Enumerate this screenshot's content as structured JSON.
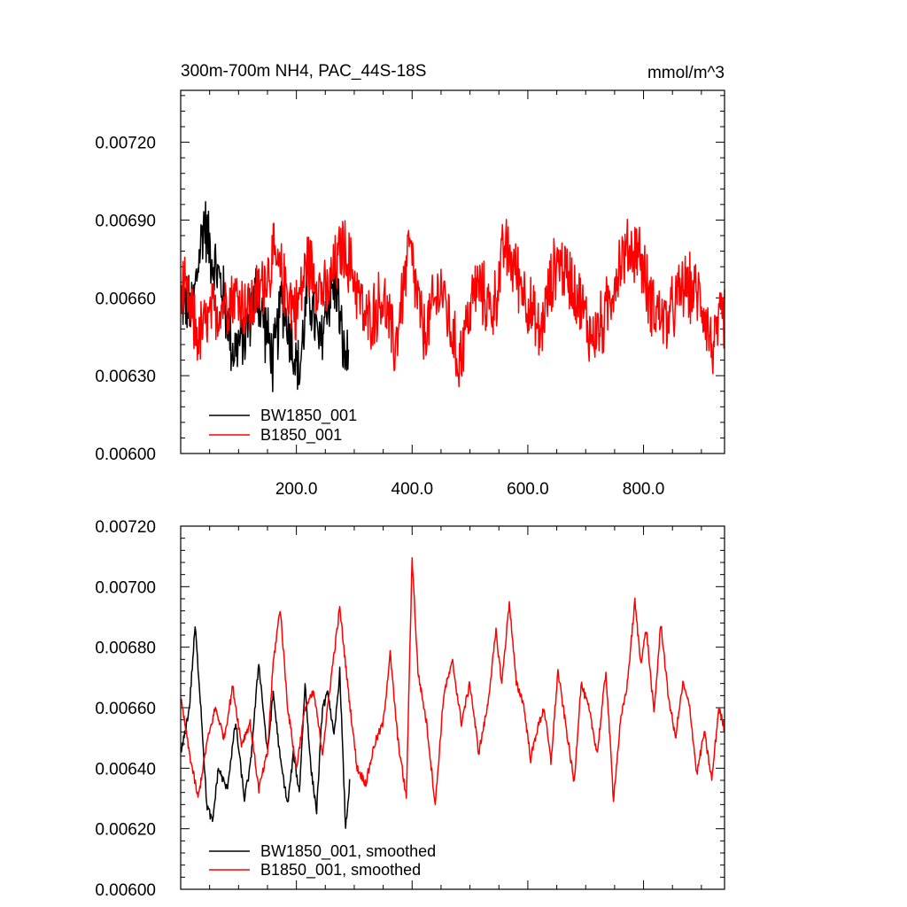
{
  "chart_data": [
    {
      "type": "line",
      "title": "300m-700m NH4, PAC_44S-18S",
      "units": "mmol/m^3",
      "xlim": [
        0,
        940
      ],
      "ylim": [
        0.006,
        0.0074
      ],
      "xticks": [
        200,
        400,
        600,
        800
      ],
      "xtick_labels": [
        "200.0",
        "400.0",
        "600.0",
        "800.0"
      ],
      "yticks": [
        0.006,
        0.0063,
        0.0066,
        0.0069,
        0.0072
      ],
      "ytick_labels": [
        "0.00600",
        "0.00630",
        "0.00660",
        "0.00690",
        "0.00720"
      ],
      "legend_position": "bottom-left",
      "series": [
        {
          "name": "BW1850_001",
          "color": "#000000",
          "x_start": 1,
          "noisy": true,
          "anchors": [
            [
              1,
              0.0066
            ],
            [
              20,
              0.00655
            ],
            [
              40,
              0.0069
            ],
            [
              55,
              0.00675
            ],
            [
              70,
              0.00665
            ],
            [
              90,
              0.0064
            ],
            [
              110,
              0.00645
            ],
            [
              130,
              0.00662
            ],
            [
              145,
              0.0065
            ],
            [
              160,
              0.00635
            ],
            [
              175,
              0.0066
            ],
            [
              190,
              0.00645
            ],
            [
              205,
              0.0063
            ],
            [
              220,
              0.00665
            ],
            [
              240,
              0.0064
            ],
            [
              255,
              0.0066
            ],
            [
              270,
              0.00665
            ],
            [
              280,
              0.0064
            ],
            [
              290,
              0.00635
            ]
          ]
        },
        {
          "name": "B1850_001",
          "color": "#ff0000",
          "x_start": 1,
          "noisy": true,
          "anchors": [
            [
              1,
              0.00665
            ],
            [
              30,
              0.00645
            ],
            [
              60,
              0.00655
            ],
            [
              90,
              0.00662
            ],
            [
              120,
              0.00655
            ],
            [
              160,
              0.00675
            ],
            [
              180,
              0.00665
            ],
            [
              200,
              0.00655
            ],
            [
              220,
              0.00675
            ],
            [
              250,
              0.0066
            ],
            [
              280,
              0.0068
            ],
            [
              300,
              0.00668
            ],
            [
              320,
              0.0065
            ],
            [
              350,
              0.0066
            ],
            [
              370,
              0.0064
            ],
            [
              395,
              0.0068
            ],
            [
              420,
              0.00645
            ],
            [
              450,
              0.00665
            ],
            [
              480,
              0.00635
            ],
            [
              510,
              0.00665
            ],
            [
              540,
              0.00655
            ],
            [
              560,
              0.0068
            ],
            [
              590,
              0.00665
            ],
            [
              620,
              0.00645
            ],
            [
              650,
              0.00675
            ],
            [
              680,
              0.00665
            ],
            [
              710,
              0.00645
            ],
            [
              730,
              0.0065
            ],
            [
              760,
              0.00675
            ],
            [
              790,
              0.0068
            ],
            [
              810,
              0.0066
            ],
            [
              840,
              0.0065
            ],
            [
              870,
              0.00665
            ],
            [
              900,
              0.0066
            ],
            [
              920,
              0.0064
            ],
            [
              940,
              0.00655
            ]
          ]
        }
      ]
    },
    {
      "type": "line",
      "title": "",
      "units": "",
      "xlim": [
        0,
        940
      ],
      "ylim": [
        0.006,
        0.0072
      ],
      "xticks": [
        200,
        400,
        600,
        800
      ],
      "xtick_labels": [
        "",
        "",
        "",
        ""
      ],
      "yticks": [
        0.006,
        0.0062,
        0.0064,
        0.0066,
        0.0068,
        0.007,
        0.0072
      ],
      "ytick_labels": [
        "0.00600",
        "0.00620",
        "0.00640",
        "0.00660",
        "0.00680",
        "0.00700",
        "0.00720"
      ],
      "legend_position": "bottom-left",
      "series": [
        {
          "name": "BW1850_001, smoothed",
          "color": "#000000",
          "x_start": 1,
          "noisy": false,
          "anchors": [
            [
              1,
              0.00645
            ],
            [
              15,
              0.0066
            ],
            [
              25,
              0.00687
            ],
            [
              35,
              0.0066
            ],
            [
              45,
              0.00628
            ],
            [
              55,
              0.00622
            ],
            [
              65,
              0.0064
            ],
            [
              80,
              0.00633
            ],
            [
              95,
              0.00655
            ],
            [
              110,
              0.0063
            ],
            [
              120,
              0.0064
            ],
            [
              135,
              0.00675
            ],
            [
              150,
              0.00645
            ],
            [
              160,
              0.00665
            ],
            [
              172,
              0.00643
            ],
            [
              185,
              0.00628
            ],
            [
              195,
              0.00645
            ],
            [
              205,
              0.00632
            ],
            [
              215,
              0.00668
            ],
            [
              225,
              0.0064
            ],
            [
              235,
              0.00626
            ],
            [
              245,
              0.0066
            ],
            [
              255,
              0.00665
            ],
            [
              265,
              0.0065
            ],
            [
              275,
              0.00672
            ],
            [
              285,
              0.0062
            ],
            [
              292,
              0.00635
            ]
          ]
        },
        {
          "name": "B1850_001, smoothed",
          "color": "#ff0000",
          "x_start": 1,
          "noisy": false,
          "anchors": [
            [
              1,
              0.00662
            ],
            [
              15,
              0.00645
            ],
            [
              30,
              0.0063
            ],
            [
              45,
              0.00648
            ],
            [
              60,
              0.0066
            ],
            [
              75,
              0.0065
            ],
            [
              90,
              0.00667
            ],
            [
              105,
              0.00648
            ],
            [
              120,
              0.00655
            ],
            [
              135,
              0.00633
            ],
            [
              150,
              0.00645
            ],
            [
              160,
              0.00675
            ],
            [
              172,
              0.00693
            ],
            [
              185,
              0.0066
            ],
            [
              200,
              0.0064
            ],
            [
              215,
              0.0066
            ],
            [
              230,
              0.00665
            ],
            [
              245,
              0.00645
            ],
            [
              260,
              0.0067
            ],
            [
              275,
              0.00693
            ],
            [
              290,
              0.00665
            ],
            [
              305,
              0.0064
            ],
            [
              320,
              0.00635
            ],
            [
              335,
              0.00648
            ],
            [
              350,
              0.00655
            ],
            [
              362,
              0.00678
            ],
            [
              375,
              0.0065
            ],
            [
              390,
              0.0063
            ],
            [
              400,
              0.0071
            ],
            [
              410,
              0.00672
            ],
            [
              425,
              0.00655
            ],
            [
              440,
              0.00628
            ],
            [
              455,
              0.00665
            ],
            [
              470,
              0.00675
            ],
            [
              485,
              0.00655
            ],
            [
              500,
              0.00668
            ],
            [
              515,
              0.00645
            ],
            [
              530,
              0.0066
            ],
            [
              545,
              0.00685
            ],
            [
              555,
              0.00668
            ],
            [
              568,
              0.00695
            ],
            [
              580,
              0.00668
            ],
            [
              592,
              0.00662
            ],
            [
              605,
              0.00643
            ],
            [
              615,
              0.00652
            ],
            [
              628,
              0.0066
            ],
            [
              640,
              0.00642
            ],
            [
              652,
              0.00672
            ],
            [
              665,
              0.00655
            ],
            [
              680,
              0.00635
            ],
            [
              692,
              0.00668
            ],
            [
              705,
              0.0066
            ],
            [
              720,
              0.00645
            ],
            [
              735,
              0.00672
            ],
            [
              748,
              0.0063
            ],
            [
              760,
              0.00655
            ],
            [
              772,
              0.00668
            ],
            [
              785,
              0.00695
            ],
            [
              795,
              0.00675
            ],
            [
              805,
              0.00686
            ],
            [
              818,
              0.00658
            ],
            [
              830,
              0.00688
            ],
            [
              842,
              0.00665
            ],
            [
              855,
              0.0065
            ],
            [
              868,
              0.00668
            ],
            [
              880,
              0.0066
            ],
            [
              892,
              0.00638
            ],
            [
              905,
              0.00652
            ],
            [
              918,
              0.00636
            ],
            [
              930,
              0.0066
            ],
            [
              940,
              0.00653
            ]
          ]
        }
      ]
    }
  ]
}
